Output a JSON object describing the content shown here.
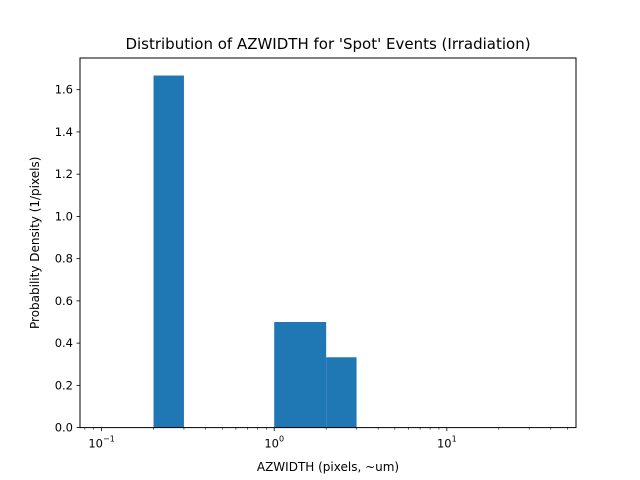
{
  "chart_data": {
    "type": "bar",
    "title": "Distribution of AZWIDTH for 'Spot' Events (Irradiation)",
    "xlabel": "AZWIDTH (pixels, ~um)",
    "ylabel": "Probability Density (1/pixels)",
    "x_scale": "log",
    "xlim": [
      0.075,
      56
    ],
    "ylim": [
      0,
      1.75
    ],
    "bar_color": "#1f77b4",
    "grid": false,
    "bins": [
      {
        "x0": 0.2,
        "x1": 0.3,
        "density": 1.667
      },
      {
        "x0": 1.0,
        "x1": 2.0,
        "density": 0.5
      },
      {
        "x0": 2.0,
        "x1": 3.0,
        "density": 0.333
      }
    ],
    "x_ticks": [
      {
        "value": 0.1,
        "base": "10",
        "exp": "−1"
      },
      {
        "value": 1,
        "base": "10",
        "exp": "0"
      },
      {
        "value": 10,
        "base": "10",
        "exp": "1"
      }
    ],
    "y_ticks": [
      {
        "value": 0.0,
        "label": "0.0"
      },
      {
        "value": 0.2,
        "label": "0.2"
      },
      {
        "value": 0.4,
        "label": "0.4"
      },
      {
        "value": 0.6,
        "label": "0.6"
      },
      {
        "value": 0.8,
        "label": "0.8"
      },
      {
        "value": 1.0,
        "label": "1.0"
      },
      {
        "value": 1.2,
        "label": "1.2"
      },
      {
        "value": 1.4,
        "label": "1.4"
      },
      {
        "value": 1.6,
        "label": "1.6"
      }
    ]
  }
}
